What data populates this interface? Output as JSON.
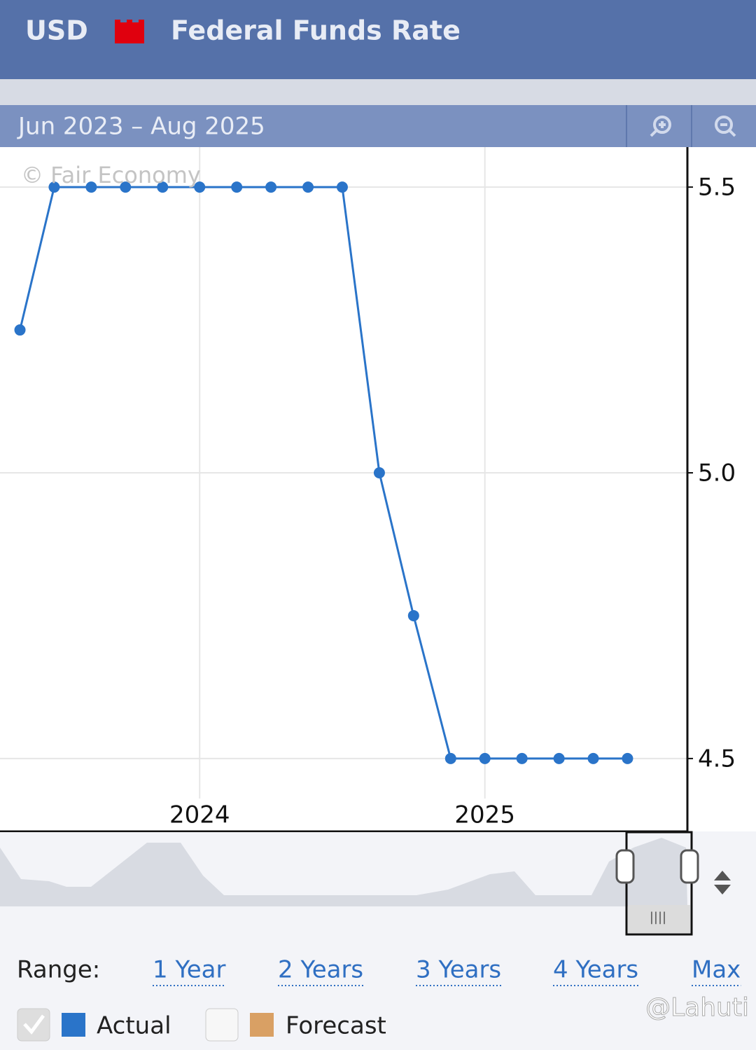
{
  "header": {
    "currency": "USD",
    "title": "Federal Funds Rate"
  },
  "range_bar": {
    "label": "Jun 2023 – Aug 2025"
  },
  "watermark": "© Fair Economy",
  "range_buttons": {
    "label": "Range:",
    "options": [
      "1 Year",
      "2 Years",
      "3 Years",
      "4 Years",
      "Max"
    ]
  },
  "credit": "@Lahuti",
  "chart_data": {
    "type": "line",
    "x": [
      2023.37,
      2023.49,
      2023.62,
      2023.74,
      2023.87,
      2024.0,
      2024.13,
      2024.25,
      2024.38,
      2024.5,
      2024.63,
      2024.75,
      2024.88,
      2025.0,
      2025.13,
      2025.26,
      2025.38,
      2025.5
    ],
    "series": [
      {
        "name": "Actual",
        "color": "#2a74c9",
        "values": [
          5.25,
          5.5,
          5.5,
          5.5,
          5.5,
          5.5,
          5.5,
          5.5,
          5.5,
          5.5,
          5.0,
          4.75,
          4.5,
          4.5,
          4.5,
          4.5,
          4.5,
          4.5
        ]
      }
    ],
    "forecast": {
      "name": "Forecast",
      "color": "#d9a064"
    },
    "xlim": [
      2023.3,
      2025.71
    ],
    "xticks": [
      2024,
      2025
    ],
    "ylim": [
      4.43,
      5.57
    ],
    "yticks": [
      5.5,
      {
        "value": 5,
        "label": "5.0"
      },
      4.5
    ],
    "grid": true
  }
}
